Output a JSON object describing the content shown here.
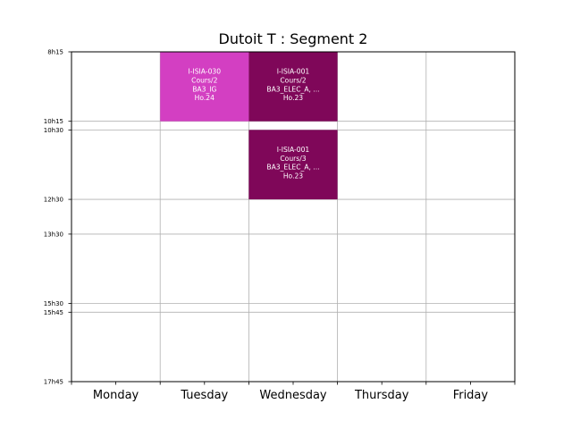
{
  "chart_data": {
    "type": "timetable",
    "title": "Dutoit T : Segment 2",
    "days": [
      "Monday",
      "Tuesday",
      "Wednesday",
      "Thursday",
      "Friday"
    ],
    "time_labels": [
      "8h15",
      "10h15",
      "10h30",
      "12h30",
      "13h30",
      "15h30",
      "15h45",
      "17h45"
    ],
    "time_range": [
      "8h15",
      "17h45"
    ],
    "grid": true,
    "events": [
      {
        "day": "Tuesday",
        "start": "8h15",
        "end": "10h15",
        "lines": [
          "I-ISIA-030",
          "Cours/2",
          "BA3_IG",
          "Ho.24"
        ],
        "color": "#d33fc2"
      },
      {
        "day": "Wednesday",
        "start": "8h15",
        "end": "10h15",
        "lines": [
          "I-ISIA-001",
          "Cours/2",
          "BA3_ELEC_A, ...",
          "Ho.23"
        ],
        "color": "#7f0759"
      },
      {
        "day": "Wednesday",
        "start": "10h30",
        "end": "12h30",
        "lines": [
          "I-ISIA-001",
          "Cours/3",
          "BA3_ELEC_A, ...",
          "Ho.23"
        ],
        "color": "#7f0759"
      }
    ]
  }
}
